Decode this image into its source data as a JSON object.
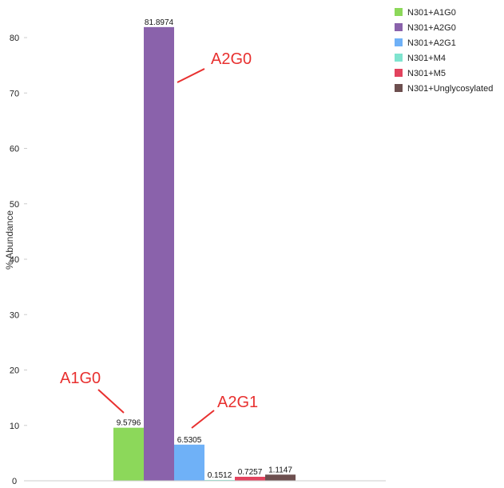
{
  "chart_data": {
    "type": "bar",
    "ylabel": "% Abundance",
    "ylim": [
      0,
      85
    ],
    "yticks": [
      0,
      10,
      20,
      30,
      40,
      50,
      60,
      70,
      80
    ],
    "grid": false,
    "legend_position": "top-right",
    "series": [
      {
        "name": "N301+A1G0",
        "value": 9.5796,
        "label": "9.5796",
        "color": "#8cd85a"
      },
      {
        "name": "N301+A2G0",
        "value": 81.8974,
        "label": "81.8974",
        "color": "#8a62ab"
      },
      {
        "name": "N301+A2G1",
        "value": 6.5305,
        "label": "6.5305",
        "color": "#6fb1f7"
      },
      {
        "name": "N301+M4",
        "value": 0.1512,
        "label": "0.1512",
        "color": "#7fe4cf"
      },
      {
        "name": "N301+M5",
        "value": 0.7257,
        "label": "0.7257",
        "color": "#e2435e"
      },
      {
        "name": "N301+Unglycosylated",
        "value": 1.1147,
        "label": "1.1147",
        "color": "#6d4f4f"
      }
    ],
    "annotations": [
      {
        "text": "A2G0",
        "target_series": 1
      },
      {
        "text": "A1G0",
        "target_series": 0
      },
      {
        "text": "A2G1",
        "target_series": 2
      }
    ]
  }
}
